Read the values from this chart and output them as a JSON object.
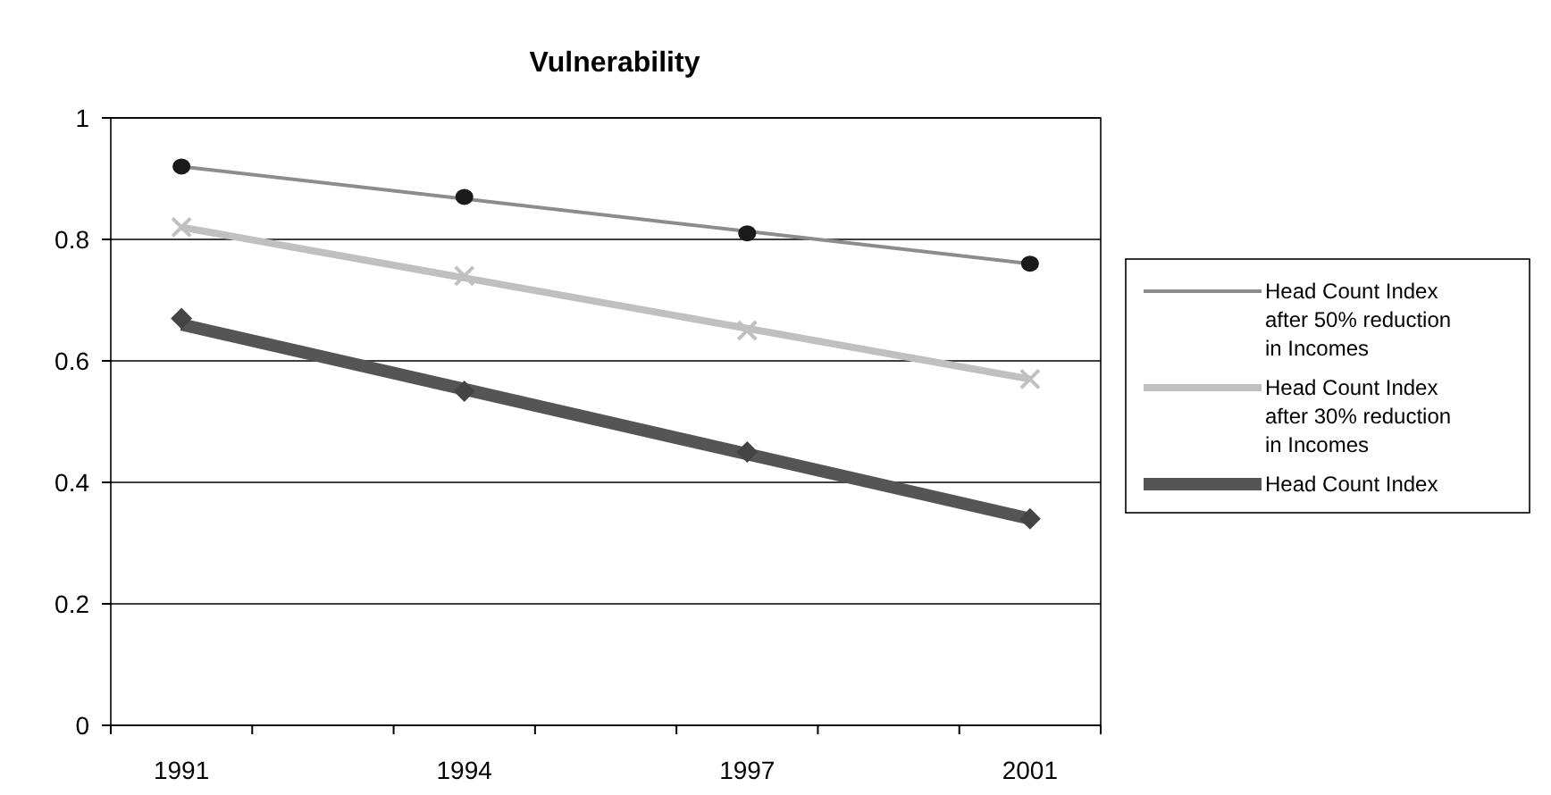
{
  "chart_data": {
    "type": "line",
    "title": "Vulnerability",
    "categories": [
      "1991",
      null,
      "1994",
      null,
      "1997",
      null,
      "2001"
    ],
    "ylim": [
      0,
      1
    ],
    "yticks": [
      0,
      0.2,
      0.4,
      0.6,
      0.8,
      1
    ],
    "grid": "y",
    "legend": "right",
    "series": [
      {
        "type": "scatter",
        "marker": "circle",
        "color": "#1a1a1a",
        "values": [
          0.92,
          null,
          0.87,
          null,
          0.81,
          null,
          0.76
        ]
      },
      {
        "type": "scatter",
        "marker": "cross",
        "color": "#c0c0c0",
        "values": [
          0.82,
          null,
          0.74,
          null,
          0.65,
          null,
          0.57
        ]
      },
      {
        "type": "scatter",
        "marker": "diamond",
        "color": "#444444",
        "values": [
          0.67,
          null,
          0.55,
          null,
          0.45,
          null,
          0.34
        ]
      },
      {
        "name": "Head Count Index after 50% reduction in Incomes",
        "color": "#8c8c8c",
        "values": [
          0.92,
          null,
          null,
          null,
          null,
          null,
          0.76
        ]
      },
      {
        "name": "Head Count Index after 30% reduction in Incomes",
        "color": "#c0c0c0",
        "values": [
          0.82,
          null,
          null,
          null,
          null,
          null,
          0.57
        ]
      },
      {
        "name": "Head Count Index",
        "color": "#555555",
        "values": [
          0.66,
          null,
          null,
          null,
          null,
          null,
          0.34
        ]
      }
    ]
  }
}
